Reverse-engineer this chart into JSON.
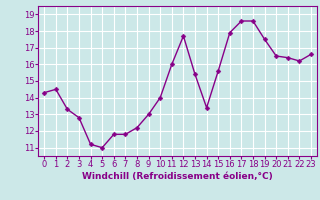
{
  "x": [
    0,
    1,
    2,
    3,
    4,
    5,
    6,
    7,
    8,
    9,
    10,
    11,
    12,
    13,
    14,
    15,
    16,
    17,
    18,
    19,
    20,
    21,
    22,
    23
  ],
  "y": [
    14.3,
    14.5,
    13.3,
    12.8,
    11.2,
    11.0,
    11.8,
    11.8,
    12.2,
    13.0,
    14.0,
    16.0,
    17.7,
    15.4,
    13.4,
    15.6,
    17.9,
    18.6,
    18.6,
    17.5,
    16.5,
    16.4,
    16.2,
    16.6
  ],
  "line_color": "#880088",
  "marker_color": "#880088",
  "bg_color": "#cce8e8",
  "grid_color": "#ffffff",
  "xlabel": "Windchill (Refroidissement éolien,°C)",
  "xlim": [
    -0.5,
    23.5
  ],
  "ylim": [
    10.5,
    19.5
  ],
  "yticks": [
    11,
    12,
    13,
    14,
    15,
    16,
    17,
    18,
    19
  ],
  "xticks": [
    0,
    1,
    2,
    3,
    4,
    5,
    6,
    7,
    8,
    9,
    10,
    11,
    12,
    13,
    14,
    15,
    16,
    17,
    18,
    19,
    20,
    21,
    22,
    23
  ],
  "tick_label_color": "#880088",
  "xlabel_color": "#880088",
  "line_width": 1.0,
  "marker_size": 2.5,
  "font_size": 6.0,
  "xlabel_fontsize": 6.5
}
